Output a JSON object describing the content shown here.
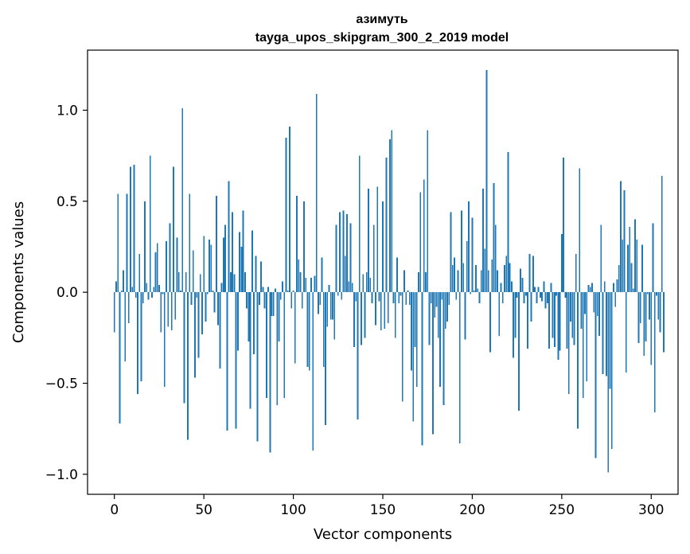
{
  "chart_data": {
    "type": "bar",
    "title_line1": "азимуть",
    "title_line2": "tayga_upos_skipgram_300_2_2019 model",
    "xlabel": "Vector components",
    "ylabel": "Components values",
    "xlim": [
      -15,
      315
    ],
    "ylim": [
      -1.11,
      1.33
    ],
    "x_ticks": [
      0,
      50,
      100,
      150,
      200,
      250,
      300
    ],
    "x_tick_labels": [
      "0",
      "50",
      "100",
      "150",
      "200",
      "250",
      "300"
    ],
    "y_ticks": [
      -1.0,
      -0.5,
      0.0,
      0.5,
      1.0
    ],
    "y_tick_labels": [
      "−1.0",
      "−0.5",
      "0.0",
      "0.5",
      "1.0"
    ],
    "bar_color": "#1f77b4",
    "values": [
      -0.22,
      0.06,
      0.54,
      -0.72,
      0.01,
      0.12,
      -0.38,
      0.54,
      -0.17,
      0.69,
      0.03,
      0.7,
      -0.03,
      -0.56,
      0.21,
      -0.49,
      -0.06,
      0.5,
      0.05,
      -0.04,
      0.75,
      -0.03,
      0.03,
      0.22,
      0.27,
      0.04,
      -0.22,
      -0.01,
      -0.52,
      0.28,
      -0.19,
      0.38,
      -0.21,
      0.69,
      -0.15,
      0.3,
      0.11,
      0.01,
      1.01,
      -0.61,
      0.11,
      -0.81,
      0.54,
      -0.07,
      0.23,
      -0.47,
      -0.03,
      -0.36,
      0.1,
      -0.23,
      0.31,
      -0.16,
      -0.01,
      0.29,
      0.26,
      0.01,
      -0.11,
      0.53,
      -0.18,
      -0.42,
      0.05,
      0.3,
      0.37,
      -0.76,
      0.61,
      0.11,
      0.44,
      0.1,
      -0.75,
      -0.32,
      0.33,
      0.25,
      0.45,
      0.11,
      -0.09,
      -0.27,
      -0.64,
      0.34,
      -0.34,
      0.2,
      -0.82,
      -0.07,
      0.17,
      0.03,
      -0.09,
      -0.58,
      0.03,
      -0.88,
      -0.13,
      -0.13,
      0.02,
      -0.62,
      -0.27,
      -0.04,
      0.06,
      -0.58,
      0.85,
      0.01,
      0.91,
      -0.09,
      0.01,
      -0.39,
      0.53,
      0.18,
      0.11,
      -0.09,
      0.5,
      0.08,
      -0.41,
      -0.43,
      0.08,
      -0.87,
      0.09,
      1.09,
      -0.12,
      -0.07,
      0.19,
      -0.41,
      -0.73,
      -0.19,
      0.04,
      -0.15,
      -0.15,
      -0.26,
      0.37,
      -0.02,
      0.44,
      -0.04,
      0.45,
      0.2,
      0.43,
      0.06,
      0.38,
      0.05,
      -0.3,
      -0.05,
      -0.7,
      0.75,
      -0.29,
      0.1,
      -0.25,
      0.11,
      0.57,
      0.08,
      -0.06,
      0.37,
      -0.18,
      0.58,
      -0.05,
      -0.21,
      0.5,
      -0.2,
      0.74,
      -0.17,
      0.84,
      0.89,
      -0.06,
      -0.25,
      0.19,
      -0.06,
      -0.02,
      -0.6,
      0.12,
      -0.07,
      0.01,
      -0.07,
      -0.43,
      -0.71,
      -0.3,
      -0.52,
      0.11,
      0.55,
      -0.84,
      0.62,
      0.11,
      0.89,
      -0.29,
      -0.06,
      -0.78,
      -0.14,
      -0.08,
      -0.25,
      -0.52,
      -0.04,
      -0.62,
      -0.2,
      -0.16,
      -0.07,
      0.44,
      0.15,
      0.19,
      -0.04,
      0.12,
      -0.83,
      0.45,
      0.16,
      -0.26,
      0.28,
      0.5,
      -0.01,
      0.41,
      0.01,
      0.15,
      0.02,
      -0.06,
      0.12,
      0.57,
      0.24,
      1.22,
      0.12,
      -0.33,
      0.18,
      0.6,
      0.37,
      0.12,
      -0.24,
      0.05,
      -0.06,
      0.15,
      0.2,
      0.77,
      0.16,
      0.06,
      -0.36,
      -0.25,
      -0.03,
      -0.65,
      0.13,
      0.08,
      -0.06,
      -0.02,
      -0.31,
      0.21,
      -0.16,
      0.2,
      0.03,
      -0.06,
      0.03,
      -0.03,
      -0.05,
      0.06,
      -0.09,
      -0.06,
      -0.31,
      0.05,
      -0.25,
      -0.3,
      -0.02,
      -0.37,
      -0.32,
      0.32,
      0.74,
      -0.03,
      -0.31,
      -0.56,
      -0.16,
      -0.25,
      -0.29,
      0.21,
      -0.75,
      0.68,
      -0.2,
      -0.58,
      -0.12,
      -0.49,
      0.04,
      0.03,
      0.05,
      -0.11,
      -0.91,
      -0.13,
      -0.24,
      0.37,
      -0.45,
      0.06,
      -0.46,
      -0.99,
      -0.53,
      -0.86,
      0.05,
      -0.08,
      0.07,
      0.15,
      0.61,
      0.29,
      0.56,
      -0.44,
      0.26,
      0.36,
      0.16,
      0.02,
      0.4,
      0.29,
      -0.28,
      -0.17,
      0.26,
      -0.35,
      -0.27,
      -0.01,
      -0.15,
      -0.4,
      0.38,
      -0.66,
      -0.02,
      -0.15,
      -0.22,
      0.64,
      -0.33
    ]
  }
}
